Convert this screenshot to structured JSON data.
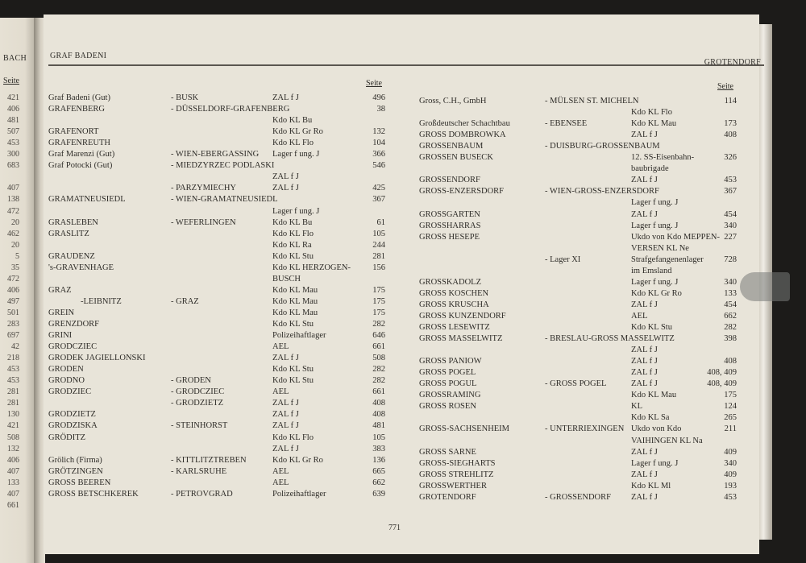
{
  "previous_page": {
    "header": "BACH",
    "seite": "Seite",
    "numbers": [
      "421",
      "406",
      "481",
      "507",
      "453",
      "300",
      "683",
      "",
      "407",
      "138",
      "472",
      "20",
      "462",
      "20",
      "5",
      "35",
      "472",
      "406",
      "497",
      "501",
      "283",
      "697",
      "42",
      "218",
      "453",
      "453",
      "281",
      "281",
      "130",
      "421",
      "508",
      "132",
      "406",
      "407",
      "133",
      "407",
      "661"
    ]
  },
  "left_page": {
    "header": "GRAF BADENI",
    "seite": "Seite",
    "rows": [
      [
        "Graf Badeni (Gut)",
        "- BUSK",
        "ZAL f J",
        "496"
      ],
      [
        "GRAFENBERG",
        "- DÜSSELDORF-GRAFENBERG",
        "",
        "38"
      ],
      [
        "",
        "",
        "Kdo KL Bu",
        ""
      ],
      [
        "GRAFENORT",
        "",
        "Kdo KL Gr Ro",
        "132"
      ],
      [
        "GRAFENREUTH",
        "",
        "Kdo KL Flo",
        "104"
      ],
      [
        "Graf Marenzi (Gut)",
        "- WIEN-EBERGASSING",
        "Lager f ung. J",
        "366"
      ],
      [
        "Graf Potocki (Gut)",
        "- MIEDZYRZEC PODLASKI",
        "",
        "546"
      ],
      [
        "",
        "",
        "ZAL f J",
        ""
      ],
      [
        "",
        "- PARZYMIECHY",
        "ZAL f J",
        "425"
      ],
      [
        "GRAMATNEUSIEDL",
        "- WIEN-GRAMATNEUSIEDL",
        "",
        "367"
      ],
      [
        "",
        "",
        "Lager f ung. J",
        ""
      ],
      [
        "GRASLEBEN",
        "- WEFERLINGEN",
        "Kdo KL Bu",
        "61"
      ],
      [
        "GRASLITZ",
        "",
        "Kdo KL Flo",
        "105"
      ],
      [
        "",
        "",
        "Kdo KL Ra",
        "244"
      ],
      [
        "GRAUDENZ",
        "",
        "Kdo KL Stu",
        "281"
      ],
      [
        "'s-GRAVENHAGE",
        "",
        "Kdo KL HERZOGEN-",
        "156"
      ],
      [
        "",
        "",
        "BUSCH",
        ""
      ],
      [
        "GRAZ",
        "",
        "Kdo KL Mau",
        "175"
      ],
      [
        "      -LEIBNITZ",
        "- GRAZ",
        "Kdo KL Mau",
        "175"
      ],
      [
        "GREIN",
        "",
        "Kdo KL Mau",
        "175"
      ],
      [
        "GRENZDORF",
        "",
        "Kdo KL Stu",
        "282"
      ],
      [
        "GRINI",
        "",
        "Polizeihaftlager",
        "646"
      ],
      [
        "GRODCZIEC",
        "",
        "AEL",
        "661"
      ],
      [
        "GRODEK JAGIELLONSKI",
        "",
        "ZAL f J",
        "508"
      ],
      [
        "GRODEN",
        "",
        "Kdo KL Stu",
        "282"
      ],
      [
        "GRODNO",
        "- GRODEN",
        "Kdo KL Stu",
        "282"
      ],
      [
        "GRODZIEC",
        "- GRODCZIEC",
        "AEL",
        "661"
      ],
      [
        "",
        "- GRODZIETZ",
        "ZAL f J",
        "408"
      ],
      [
        "GRODZIETZ",
        "",
        "ZAL f J",
        "408"
      ],
      [
        "GRODZISKA",
        "- STEINHORST",
        "ZAL f J",
        "481"
      ],
      [
        "GRÖDITZ",
        "",
        "Kdo KL Flo",
        "105"
      ],
      [
        "",
        "",
        "ZAL f J",
        "383"
      ],
      [
        "Grölich (Firma)",
        "- KITTLITZTREBEN",
        "Kdo KL Gr Ro",
        "136"
      ],
      [
        "GRÖTZINGEN",
        "- KARLSRUHE",
        "AEL",
        "665"
      ],
      [
        "GROSS BEEREN",
        "",
        "AEL",
        "662"
      ],
      [
        "GROSS BETSCHKEREK",
        "- PETROVGRAD",
        "Polizeihaftlager",
        "639"
      ]
    ]
  },
  "right_page": {
    "header": "GROTENDORF",
    "seite": "Seite",
    "rows": [
      [
        "Gross, C.H., GmbH",
        "- MÜLSEN ST. MICHELN",
        "",
        "114"
      ],
      [
        "",
        "",
        "Kdo KL Flo",
        ""
      ],
      [
        "Großdeutscher Schachtbau",
        "- EBENSEE",
        "Kdo KL Mau",
        "173"
      ],
      [
        "GROSS DOMBROWKA",
        "",
        "ZAL f J",
        "408"
      ],
      [
        "GROSSENBAUM",
        "- DUISBURG-GROSSENBAUM",
        "",
        ""
      ],
      [
        "GROSSEN BUSECK",
        "",
        "12. SS-Eisenbahn-",
        "326"
      ],
      [
        "",
        "",
        "baubrigade",
        ""
      ],
      [
        "GROSSENDORF",
        "",
        "ZAL f J",
        "453"
      ],
      [
        "GROSS-ENZERSDORF",
        "- WIEN-GROSS-ENZERSDORF",
        "",
        "367"
      ],
      [
        "",
        "",
        "Lager f ung. J",
        ""
      ],
      [
        "GROSSGARTEN",
        "",
        "ZAL f J",
        "454"
      ],
      [
        "GROSSHARRAS",
        "",
        "Lager f ung. J",
        "340"
      ],
      [
        "GROSS HESEPE",
        "",
        "Ukdo von Kdo MEPPEN-",
        "227"
      ],
      [
        "",
        "",
        "VERSEN KL Ne",
        ""
      ],
      [
        "",
        "- Lager XI",
        "Strafgefangenenlager",
        "728"
      ],
      [
        "",
        "",
        "im Emsland",
        ""
      ],
      [
        "GROSSKADOLZ",
        "",
        "Lager f ung. J",
        "340"
      ],
      [
        "GROSS KOSCHEN",
        "",
        "Kdo KL Gr Ro",
        "133"
      ],
      [
        "GROSS KRUSCHA",
        "",
        "ZAL f J",
        "454"
      ],
      [
        "GROSS KUNZENDORF",
        "",
        "AEL",
        "662"
      ],
      [
        "GROSS LESEWITZ",
        "",
        "Kdo KL Stu",
        "282"
      ],
      [
        "GROSS MASSELWITZ",
        "- BRESLAU-GROSS MASSELWITZ",
        "",
        "398"
      ],
      [
        "",
        "",
        "ZAL f J",
        ""
      ],
      [
        "GROSS PANIOW",
        "",
        "ZAL f J",
        "408"
      ],
      [
        "GROSS POGEL",
        "",
        "ZAL f J",
        "408, 409"
      ],
      [
        "GROSS POGUL",
        "- GROSS POGEL",
        "ZAL f J",
        "408, 409"
      ],
      [
        "GROSSRAMING",
        "",
        "Kdo KL Mau",
        "175"
      ],
      [
        "GROSS ROSEN",
        "",
        "KL",
        "124"
      ],
      [
        "",
        "",
        "Kdo KL Sa",
        "265"
      ],
      [
        "GROSS-SACHSENHEIM",
        "- UNTERRIEXINGEN",
        "Ukdo von Kdo",
        "211"
      ],
      [
        "",
        "",
        "VAIHINGEN KL Na",
        ""
      ],
      [
        "GROSS SARNE",
        "",
        "ZAL f J",
        "409"
      ],
      [
        "GROSS-SIEGHARTS",
        "",
        "Lager f ung. J",
        "340"
      ],
      [
        "GROSS STREHLITZ",
        "",
        "ZAL f J",
        "409"
      ],
      [
        "GROSSWERTHER",
        "",
        "Kdo KL Ml",
        "193"
      ],
      [
        "GROTENDORF",
        "- GROSSENDORF",
        "ZAL f J",
        "453"
      ]
    ]
  },
  "page_number": "771"
}
